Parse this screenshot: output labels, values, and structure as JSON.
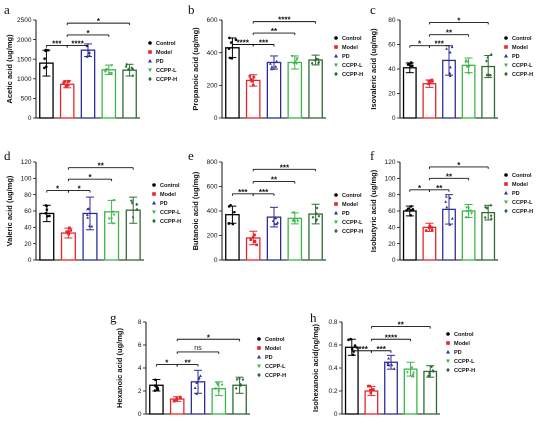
{
  "legend_categories": [
    "Control",
    "Model",
    "PD",
    "CCPP-L",
    "CCPP-H"
  ],
  "colors": {
    "Control": "#000000",
    "Model": "#e8262a",
    "PD": "#2e2e9a",
    "CCPP-L": "#3cb54a",
    "CCPP-H": "#2f6b35"
  },
  "chart_data": [
    {
      "panel": "a",
      "type": "bar",
      "ylabel": "Acetic acid (ug/mg)",
      "ylim": [
        0,
        2500
      ],
      "yticks": [
        0,
        500,
        1000,
        1500,
        2000,
        2500
      ],
      "categories": [
        "Control",
        "Model",
        "PD",
        "CCPP-L",
        "CCPP-H"
      ],
      "values": [
        1400,
        860,
        1730,
        1230,
        1220
      ],
      "errors": [
        330,
        90,
        160,
        120,
        150
      ],
      "significance": [
        {
          "from": 0,
          "to": 1,
          "label": "***",
          "y": 1850
        },
        {
          "from": 1,
          "to": 2,
          "label": "****",
          "y": 1850
        },
        {
          "from": 1,
          "to": 3,
          "label": "*",
          "y": 2120
        },
        {
          "from": 1,
          "to": 4,
          "label": "*",
          "y": 2420
        }
      ]
    },
    {
      "panel": "b",
      "type": "bar",
      "ylabel": "Propanoic acid (ug/mg)",
      "ylim": [
        0,
        600
      ],
      "yticks": [
        0,
        200,
        400,
        600
      ],
      "categories": [
        "Control",
        "Model",
        "PD",
        "CCPP-L",
        "CCPP-H"
      ],
      "values": [
        430,
        230,
        340,
        340,
        355
      ],
      "errors": [
        60,
        35,
        40,
        40,
        30
      ],
      "significance": [
        {
          "from": 0,
          "to": 1,
          "label": "****",
          "y": 450
        },
        {
          "from": 1,
          "to": 2,
          "label": "***",
          "y": 450
        },
        {
          "from": 1,
          "to": 3,
          "label": "**",
          "y": 520
        },
        {
          "from": 1,
          "to": 4,
          "label": "****",
          "y": 590
        }
      ]
    },
    {
      "panel": "c",
      "type": "bar",
      "ylabel": "Isovaleric acid (ug/mg)",
      "ylim": [
        0,
        80
      ],
      "yticks": [
        0,
        20,
        40,
        60,
        80
      ],
      "categories": [
        "Control",
        "Model",
        "PD",
        "CCPP-L",
        "CCPP-H"
      ],
      "values": [
        41,
        28,
        47,
        43,
        42
      ],
      "errors": [
        4,
        3,
        12,
        6,
        9
      ],
      "significance": [
        {
          "from": 0,
          "to": 1,
          "label": "*",
          "y": 59
        },
        {
          "from": 1,
          "to": 2,
          "label": "***",
          "y": 59
        },
        {
          "from": 1,
          "to": 3,
          "label": "**",
          "y": 68
        },
        {
          "from": 1,
          "to": 4,
          "label": "*",
          "y": 78
        }
      ]
    },
    {
      "panel": "d",
      "type": "bar",
      "ylabel": "Valeric acid (ug/mg)",
      "ylim": [
        0,
        120
      ],
      "yticks": [
        0,
        20,
        40,
        60,
        80,
        100,
        120
      ],
      "categories": [
        "Control",
        "Model",
        "PD",
        "CCPP-L",
        "CCPP-H"
      ],
      "values": [
        57,
        33,
        57,
        59,
        61
      ],
      "errors": [
        10,
        6,
        20,
        14,
        16
      ],
      "significance": [
        {
          "from": 0,
          "to": 1,
          "label": "*",
          "y": 85
        },
        {
          "from": 1,
          "to": 2,
          "label": "*",
          "y": 85
        },
        {
          "from": 1,
          "to": 3,
          "label": "*",
          "y": 99
        },
        {
          "from": 1,
          "to": 4,
          "label": "**",
          "y": 113
        }
      ]
    },
    {
      "panel": "e",
      "type": "bar",
      "ylabel": "Butanoic acid (ug/mg)",
      "ylim": [
        0,
        800
      ],
      "yticks": [
        0,
        200,
        400,
        600,
        800
      ],
      "categories": [
        "Control",
        "Model",
        "PD",
        "CCPP-L",
        "CCPP-H"
      ],
      "values": [
        370,
        180,
        350,
        340,
        375
      ],
      "errors": [
        70,
        55,
        80,
        45,
        80
      ],
      "significance": [
        {
          "from": 0,
          "to": 1,
          "label": "***",
          "y": 540
        },
        {
          "from": 1,
          "to": 2,
          "label": "***",
          "y": 540
        },
        {
          "from": 1,
          "to": 3,
          "label": "**",
          "y": 640
        },
        {
          "from": 1,
          "to": 4,
          "label": "***",
          "y": 740
        }
      ]
    },
    {
      "panel": "f",
      "type": "bar",
      "ylabel": "Isobutyric acid (ug/mg)",
      "ylim": [
        0,
        120
      ],
      "yticks": [
        0,
        20,
        40,
        60,
        80,
        100,
        120
      ],
      "categories": [
        "Control",
        "Model",
        "PD",
        "CCPP-L",
        "CCPP-H"
      ],
      "values": [
        60,
        40,
        62,
        60,
        58
      ],
      "errors": [
        6,
        5,
        18,
        8,
        9
      ],
      "significance": [
        {
          "from": 0,
          "to": 1,
          "label": "*",
          "y": 86
        },
        {
          "from": 1,
          "to": 2,
          "label": "**",
          "y": 86
        },
        {
          "from": 1,
          "to": 3,
          "label": "**",
          "y": 100
        },
        {
          "from": 1,
          "to": 4,
          "label": "*",
          "y": 114
        }
      ]
    },
    {
      "panel": "g",
      "type": "bar",
      "ylabel": "Hexanoic acid (ug/mg)",
      "ylim": [
        0,
        8
      ],
      "yticks": [
        0,
        2,
        4,
        6,
        8
      ],
      "categories": [
        "Control",
        "Model",
        "PD",
        "CCPP-L",
        "CCPP-H"
      ],
      "values": [
        2.5,
        1.3,
        2.8,
        2.2,
        2.5
      ],
      "errors": [
        0.5,
        0.2,
        1.0,
        0.6,
        0.7
      ],
      "significance": [
        {
          "from": 0,
          "to": 1,
          "label": "*",
          "y": 4.3
        },
        {
          "from": 1,
          "to": 2,
          "label": "**",
          "y": 4.3
        },
        {
          "from": 1,
          "to": 3,
          "label": "ns",
          "y": 5.4
        },
        {
          "from": 1,
          "to": 4,
          "label": "*",
          "y": 6.5
        }
      ]
    },
    {
      "panel": "h",
      "type": "bar",
      "ylabel": "Isohexanoic acid(ng/mg)",
      "ylim": [
        0,
        0.8
      ],
      "yticks": [
        0,
        0.2,
        0.4,
        0.6,
        0.8
      ],
      "categories": [
        "Control",
        "Model",
        "PD",
        "CCPP-L",
        "CCPP-H"
      ],
      "values": [
        0.58,
        0.2,
        0.45,
        0.39,
        0.37
      ],
      "errors": [
        0.07,
        0.04,
        0.06,
        0.06,
        0.05
      ],
      "significance": [
        {
          "from": 0,
          "to": 1,
          "label": "****",
          "y": 0.55
        },
        {
          "from": 1,
          "to": 2,
          "label": "***",
          "y": 0.55
        },
        {
          "from": 1,
          "to": 3,
          "label": "****",
          "y": 0.65
        },
        {
          "from": 1,
          "to": 4,
          "label": "**",
          "y": 0.76
        }
      ]
    }
  ]
}
